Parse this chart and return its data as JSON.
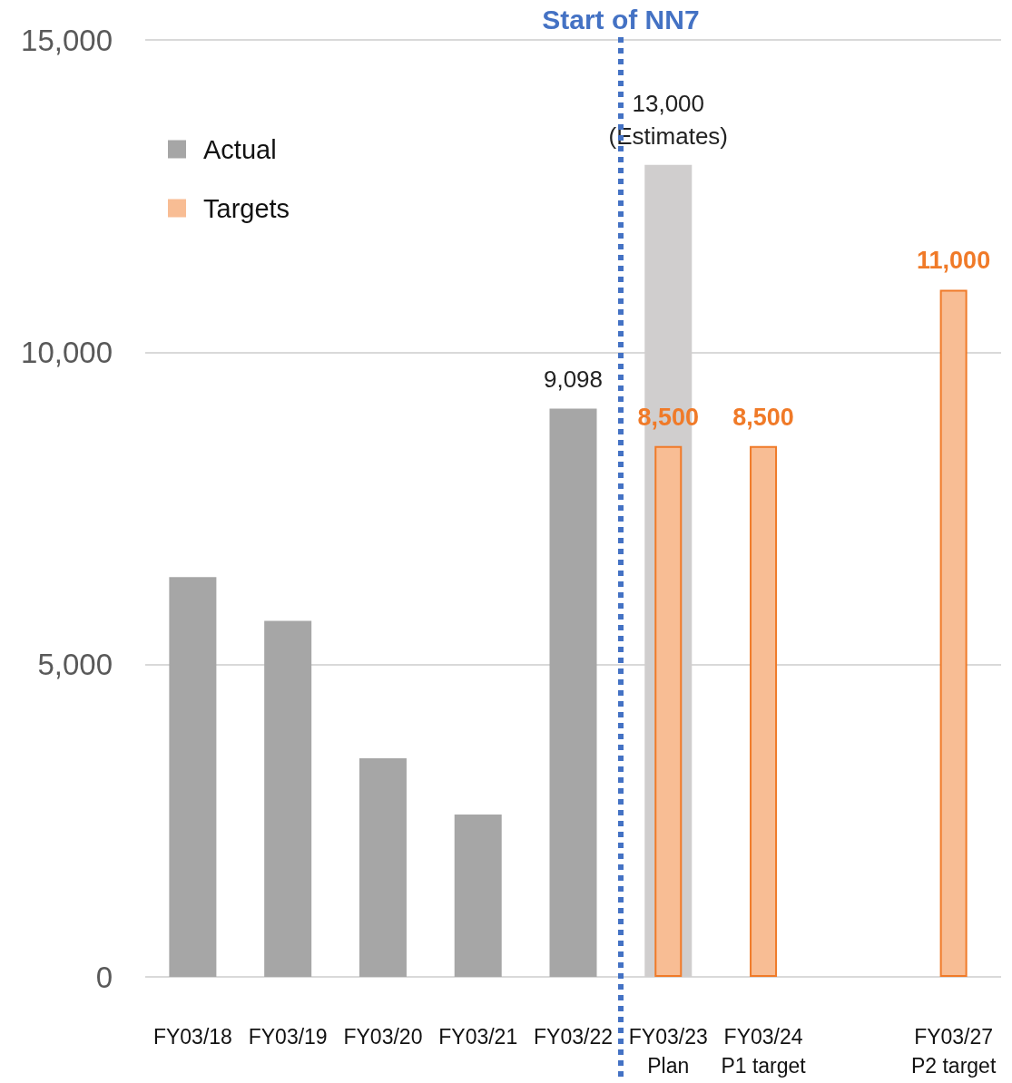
{
  "chart_data": {
    "type": "bar",
    "categories": [
      "FY03/18",
      "FY03/19",
      "FY03/20",
      "FY03/21",
      "FY03/22",
      "FY03/23\nPlan",
      "FY03/24\nP1 target",
      null,
      "FY03/27\nP2 target"
    ],
    "series": [
      {
        "name": "Actual",
        "color": "#a6a6a6",
        "colors": [
          "#a6a6a6",
          "#a6a6a6",
          "#a6a6a6",
          "#a6a6a6",
          "#a6a6a6",
          "#d0cece",
          null,
          null,
          null
        ],
        "values": [
          6400,
          5700,
          3500,
          2600,
          9098,
          13000,
          null,
          null,
          null
        ],
        "value_labels": [
          null,
          null,
          null,
          null,
          "9,098",
          "13,000\n(Estimates)",
          null,
          null,
          null
        ]
      },
      {
        "name": "Targets",
        "color": "#f8bd94",
        "values": [
          null,
          null,
          null,
          null,
          null,
          8500,
          8500,
          null,
          11000
        ],
        "value_labels": [
          null,
          null,
          null,
          null,
          null,
          "8,500",
          "8,500",
          null,
          "11,000"
        ]
      }
    ],
    "ylim": [
      0,
      15000
    ],
    "yticks": [
      {
        "value": 0,
        "label": "0"
      },
      {
        "value": 5000,
        "label": "5,000"
      },
      {
        "value": 10000,
        "label": "10,000"
      },
      {
        "value": 15000,
        "label": "15,000"
      }
    ],
    "grid": "y",
    "legend": "top left",
    "ref_lines": [
      {
        "axis": "x",
        "value": "FY03/23\nPlan",
        "label": "Start of NN7",
        "color": "#4472c4",
        "line_style": "dotted"
      }
    ]
  }
}
